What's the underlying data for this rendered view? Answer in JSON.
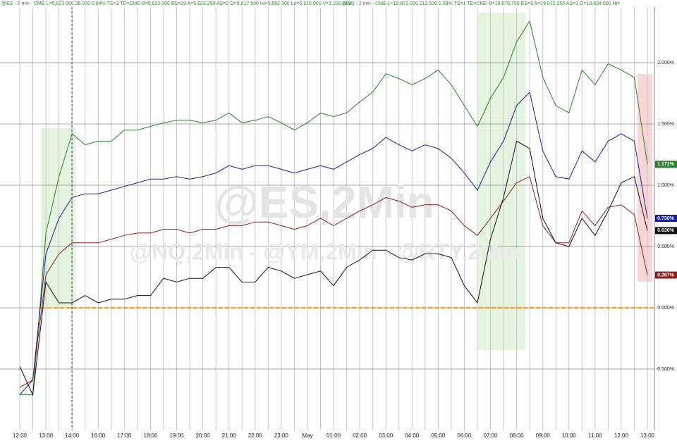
{
  "chart_data": {
    "type": "line",
    "annotations": [
      "@ES - 2 min - CME  L=5,623.000 36.000 0.64% TS=3 TE=CME B=5,623.000 BS=28 A=5,623.250 AS=2 O=5,617.500 Hi=5,682.500 Lo=5,615.000 V=1,230,519",
      "@NQ - 2 min - CME  L=19,872.000 213.500 1.09% TS=1 TE=CME B=19,870.750 BS=3 A=19,872.250 AS=1 O=19,834.000 Hi="
    ],
    "watermarks": [
      "@ES,2Min",
      "@NQ,2Min - @YM,2Min - @RTY,2Min"
    ],
    "categories": [
      "12:00",
      null,
      "13:00",
      null,
      "14:00",
      null,
      "16:00",
      null,
      "17:00",
      null,
      "18:00",
      null,
      "19:00",
      null,
      "20:00",
      null,
      "21:00",
      null,
      "22:00",
      null,
      "23:00",
      null,
      "May",
      null,
      "01:00",
      null,
      "02:00",
      null,
      "03:00",
      null,
      "04:00",
      null,
      "05:00",
      null,
      "06:00",
      null,
      "07:00",
      null,
      "08:00",
      null,
      "09:00",
      null,
      "10:00",
      null,
      "11:00",
      null,
      "12:00",
      null,
      "13:00"
    ],
    "series": [
      {
        "color": "#2b7f2b",
        "values": [
          -0.71,
          -0.71,
          0.61,
          1.07,
          1.42,
          1.33,
          1.36,
          1.36,
          1.45,
          1.45,
          1.48,
          1.51,
          1.53,
          1.53,
          1.51,
          1.53,
          1.59,
          1.51,
          1.53,
          1.56,
          1.51,
          1.45,
          1.51,
          1.59,
          1.56,
          1.59,
          1.68,
          1.76,
          1.91,
          1.87,
          1.82,
          1.87,
          1.94,
          1.82,
          1.65,
          1.48,
          1.71,
          1.88,
          2.17,
          2.34,
          1.88,
          1.65,
          1.59,
          1.94,
          1.82,
          1.99,
          1.94,
          1.88,
          1.171
        ],
        "value_labels": [
          null,
          null,
          null,
          null,
          null,
          null,
          null,
          null,
          null,
          null,
          null,
          null,
          null,
          null,
          null,
          null,
          null,
          null,
          null,
          null,
          null,
          null,
          null,
          null,
          null,
          null,
          null,
          null,
          null,
          null,
          null,
          null,
          null,
          null,
          null,
          null,
          null,
          null,
          null,
          null,
          null,
          null,
          null,
          null,
          null,
          null,
          null,
          null,
          "1.171%"
        ]
      },
      {
        "color": "#1c1c9c",
        "values": [
          -0.71,
          -0.59,
          0.44,
          0.73,
          0.9,
          0.93,
          0.93,
          0.96,
          0.99,
          1.02,
          1.05,
          1.05,
          1.07,
          1.05,
          1.07,
          1.1,
          1.16,
          1.13,
          1.16,
          1.16,
          1.13,
          1.1,
          1.13,
          1.16,
          1.13,
          1.19,
          1.25,
          1.3,
          1.39,
          1.33,
          1.28,
          1.33,
          1.3,
          1.22,
          1.1,
          0.96,
          1.19,
          1.36,
          1.65,
          1.76,
          1.28,
          1.07,
          1.05,
          1.28,
          1.19,
          1.36,
          1.42,
          1.36,
          0.73
        ],
        "value_labels": [
          null,
          null,
          null,
          null,
          null,
          null,
          null,
          null,
          null,
          null,
          null,
          null,
          null,
          null,
          null,
          null,
          null,
          null,
          null,
          null,
          null,
          null,
          null,
          null,
          null,
          null,
          null,
          null,
          null,
          null,
          null,
          null,
          null,
          null,
          null,
          null,
          null,
          null,
          null,
          null,
          null,
          null,
          null,
          null,
          null,
          null,
          null,
          null,
          "0.730%"
        ]
      },
      {
        "color": "#8b1e1e",
        "values": [
          -0.65,
          -0.59,
          0.27,
          0.44,
          0.53,
          0.53,
          0.53,
          0.56,
          0.59,
          0.61,
          0.61,
          0.64,
          0.64,
          0.61,
          0.64,
          0.64,
          0.67,
          0.67,
          0.7,
          0.7,
          0.67,
          0.64,
          0.67,
          0.73,
          0.67,
          0.73,
          0.79,
          0.84,
          0.9,
          0.87,
          0.82,
          0.84,
          0.84,
          0.79,
          0.67,
          0.59,
          0.73,
          0.87,
          1.02,
          1.07,
          0.67,
          0.53,
          0.53,
          0.79,
          0.67,
          0.82,
          0.84,
          0.76,
          0.267
        ],
        "value_labels": [
          null,
          null,
          null,
          null,
          null,
          null,
          null,
          null,
          null,
          null,
          null,
          null,
          null,
          null,
          null,
          null,
          null,
          null,
          null,
          null,
          null,
          null,
          null,
          null,
          null,
          null,
          null,
          null,
          null,
          null,
          null,
          null,
          null,
          null,
          null,
          null,
          null,
          null,
          null,
          null,
          null,
          null,
          null,
          null,
          null,
          null,
          null,
          null,
          "0.267%"
        ]
      },
      {
        "color": "#111111",
        "values": [
          -0.48,
          -0.71,
          0.21,
          0.04,
          0.04,
          0.1,
          0.04,
          0.07,
          0.07,
          0.1,
          0.1,
          0.24,
          0.21,
          0.24,
          0.24,
          0.33,
          0.33,
          0.21,
          0.21,
          0.33,
          0.3,
          0.24,
          0.27,
          0.3,
          0.18,
          0.33,
          0.39,
          0.47,
          0.47,
          0.41,
          0.39,
          0.44,
          0.44,
          0.41,
          0.18,
          0.04,
          0.56,
          0.9,
          1.36,
          1.3,
          0.73,
          0.53,
          0.5,
          0.73,
          0.59,
          0.79,
          1.02,
          1.07,
          0.63
        ],
        "value_labels": [
          null,
          null,
          null,
          null,
          null,
          null,
          null,
          null,
          null,
          null,
          null,
          null,
          null,
          null,
          null,
          null,
          null,
          null,
          null,
          null,
          null,
          null,
          null,
          null,
          null,
          null,
          null,
          null,
          null,
          null,
          null,
          null,
          null,
          null,
          null,
          null,
          null,
          null,
          null,
          null,
          null,
          null,
          null,
          null,
          null,
          null,
          null,
          null,
          "0.630%"
        ]
      }
    ],
    "ylim": [
      -1.0,
      2.5
    ],
    "yticks": [
      {
        "value": -0.5,
        "label": "-0.500%"
      },
      {
        "value": 0,
        "label": "0.000%"
      },
      {
        "value": 0.5,
        "label": "0.500%"
      },
      {
        "value": 1,
        "label": "1.000%"
      },
      {
        "value": 1.5,
        "label": "1.500%"
      },
      {
        "value": 2,
        "label": "2.000%"
      }
    ],
    "zero_line_color": "#f0a030",
    "grid": true
  }
}
